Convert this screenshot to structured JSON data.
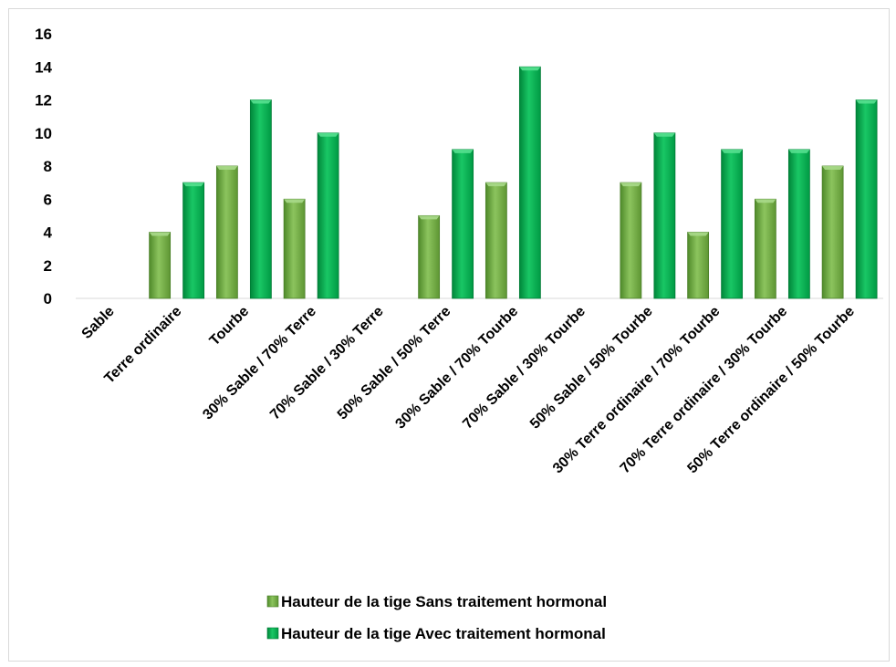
{
  "chart_data": {
    "type": "bar",
    "categories": [
      "Sable",
      "Terre ordinaire",
      "Tourbe",
      "30% Sable / 70% Terre",
      "70% Sable / 30% Terre",
      "50% Sable / 50% Terre",
      "30% Sable / 70% Tourbe",
      "70% Sable / 30% Tourbe",
      "50% Sable / 50% Tourbe",
      "30% Terre ordinaire / 70% Tourbe",
      "70% Terre ordinaire / 30% Tourbe",
      "50% Terre ordinaire / 50% Tourbe"
    ],
    "series": [
      {
        "name": "Hauteur de la tige Sans traitement hormonal",
        "color": "#70ad47",
        "values": [
          0,
          4,
          8,
          6,
          0,
          5,
          7,
          0,
          7,
          4,
          6,
          8
        ]
      },
      {
        "name": "Hauteur de la tige Avec traitement hormonal",
        "color": "#00b050",
        "values": [
          0,
          7,
          12,
          10,
          0,
          9,
          14,
          0,
          10,
          9,
          9,
          12
        ]
      }
    ],
    "y_ticks": [
      "0",
      "2",
      "4",
      "6",
      "8",
      "10",
      "12",
      "14",
      "16"
    ],
    "ylim": [
      0,
      16
    ],
    "grid": false,
    "legend_position": "bottom"
  }
}
